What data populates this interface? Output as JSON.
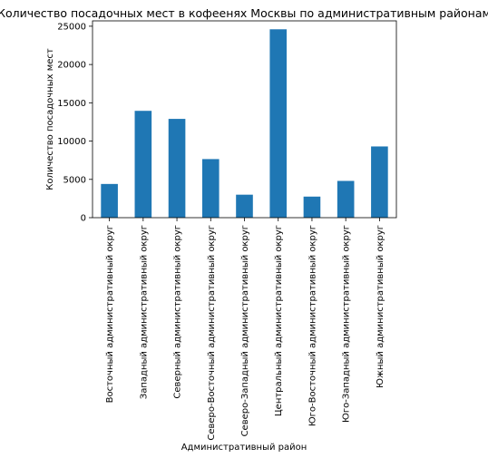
{
  "chart_data": {
    "type": "bar",
    "title": "Количество посадочных мест в кофеенях Москвы по административным районам",
    "xlabel": "Административный район",
    "ylabel": "Количество посадочных мест",
    "ylim": [
      0,
      25700
    ],
    "yticks": [
      0,
      5000,
      10000,
      15000,
      20000,
      25000
    ],
    "grid": false,
    "legend": "none",
    "bar_color": "#1f77b4",
    "categories": [
      "Восточный административный округ",
      "Западный административный округ",
      "Северный административный округ",
      "Северо-Восточный административный округ",
      "Северо-Западный административный округ",
      "Центральный административный округ",
      "Юго-Восточный административный округ",
      "Юго-Западный административный округ",
      "Южный административный округ"
    ],
    "values": [
      4400,
      13950,
      12900,
      7650,
      3000,
      24600,
      2750,
      4800,
      9300
    ]
  }
}
